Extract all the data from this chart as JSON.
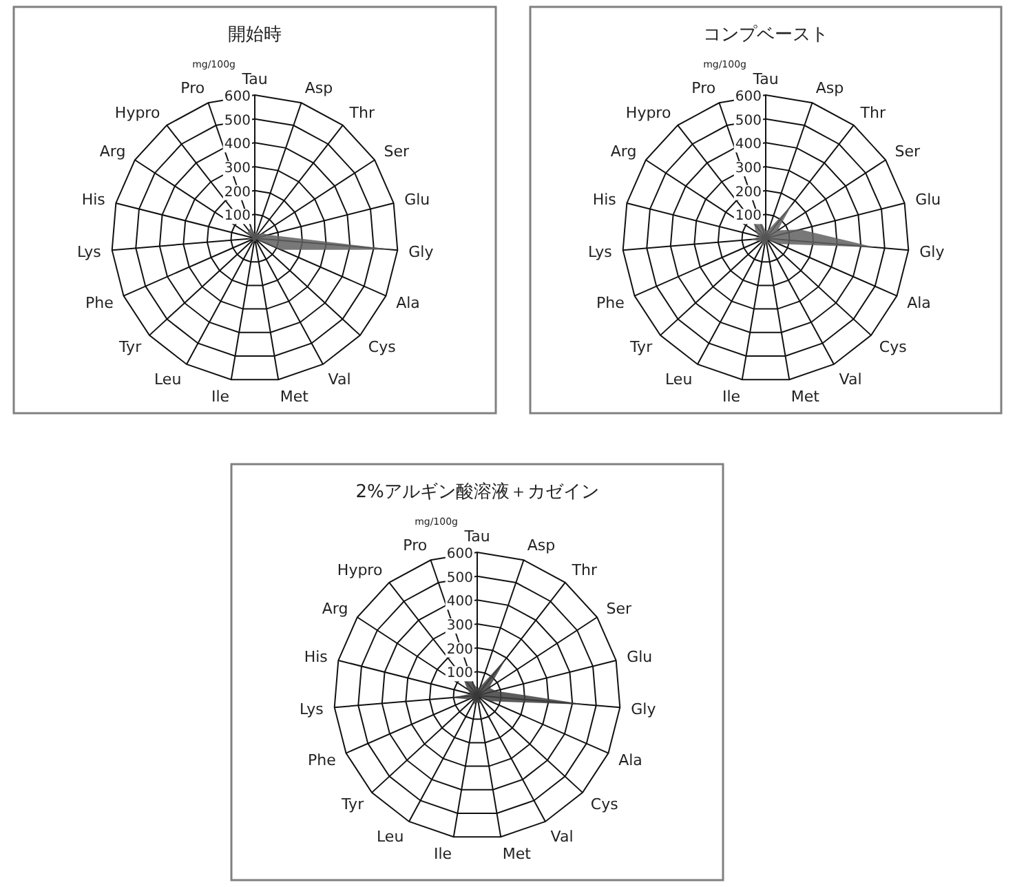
{
  "chart_data": [
    {
      "type": "radar",
      "title": "開始時",
      "annotations": [
        "mg/100g"
      ],
      "categories": [
        "Tau",
        "Asp",
        "Thr",
        "Ser",
        "Glu",
        "Gly",
        "Ala",
        "Cys",
        "Val",
        "Met",
        "Ile",
        "Leu",
        "Tyr",
        "Phe",
        "Lys",
        "His",
        "Arg",
        "Hypro",
        "Pro"
      ],
      "ylim": [
        0,
        600
      ],
      "yticks": [
        100,
        200,
        300,
        400,
        500,
        600
      ],
      "grid": true,
      "series": [
        {
          "color": "#606060",
          "values": [
            20,
            30,
            20,
            40,
            60,
            580,
            120,
            5,
            20,
            10,
            15,
            25,
            10,
            15,
            30,
            10,
            40,
            40,
            50
          ]
        }
      ]
    },
    {
      "type": "radar",
      "title": "コンプベースト",
      "annotations": [
        "mg/100g"
      ],
      "categories": [
        "Tau",
        "Asp",
        "Thr",
        "Ser",
        "Glu",
        "Gly",
        "Ala",
        "Cys",
        "Val",
        "Met",
        "Ile",
        "Leu",
        "Tyr",
        "Phe",
        "Lys",
        "His",
        "Arg",
        "Hypro",
        "Pro"
      ],
      "ylim": [
        0,
        600
      ],
      "yticks": [
        100,
        200,
        300,
        400,
        500,
        600
      ],
      "grid": true,
      "series": [
        {
          "color": "#606060",
          "values": [
            30,
            40,
            180,
            60,
            150,
            460,
            60,
            10,
            30,
            20,
            25,
            40,
            20,
            30,
            60,
            30,
            50,
            80,
            100
          ]
        }
      ]
    },
    {
      "type": "radar",
      "title": "2%アルギン酸溶液＋カゼイン",
      "annotations": [
        "mg/100g"
      ],
      "categories": [
        "Tau",
        "Asp",
        "Thr",
        "Ser",
        "Glu",
        "Gly",
        "Ala",
        "Cys",
        "Val",
        "Met",
        "Ile",
        "Leu",
        "Tyr",
        "Phe",
        "Lys",
        "His",
        "Arg",
        "Hypro",
        "Pro"
      ],
      "ylim": [
        0,
        600
      ],
      "yticks": [
        100,
        200,
        300,
        400,
        500,
        600
      ],
      "grid": true,
      "series": [
        {
          "color": "#404040",
          "values": [
            30,
            40,
            200,
            60,
            80,
            460,
            60,
            10,
            40,
            30,
            30,
            50,
            20,
            40,
            110,
            30,
            50,
            100,
            60
          ]
        }
      ]
    }
  ]
}
